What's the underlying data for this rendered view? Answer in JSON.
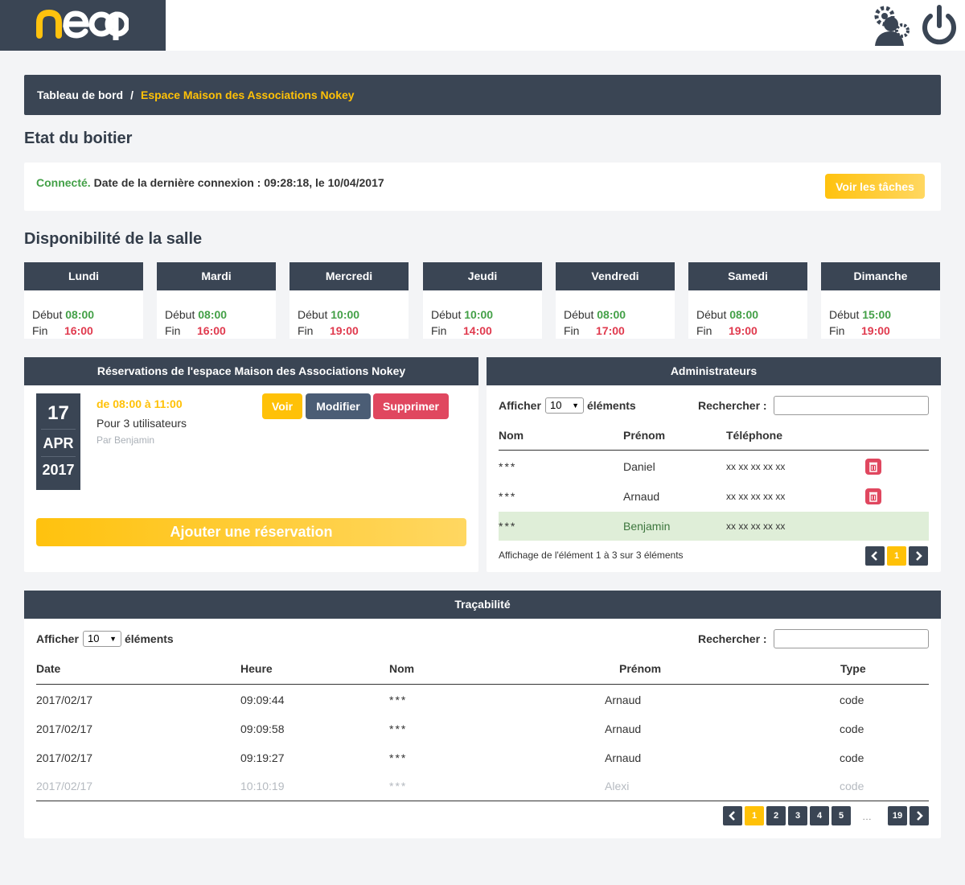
{
  "logo_text": "neop",
  "icons": {
    "user_settings": "user-gear-icon",
    "power": "power-icon",
    "trash": "trash-icon",
    "prev": "chevron-left-icon",
    "next": "chevron-right-icon"
  },
  "colors": {
    "brand_dark": "#3a4554",
    "accent": "#ffc107",
    "success": "#43a047",
    "danger": "#e03a4e"
  },
  "breadcrumb": {
    "home": "Tableau de bord",
    "separator": "/",
    "current": "Espace Maison des Associations Nokey"
  },
  "status": {
    "title": "Etat du boitier",
    "state": "Connecté.",
    "detail": "Date de la dernière connexion : 09:28:18, le 10/04/2017",
    "button": "Voir les tâches"
  },
  "availability": {
    "title": "Disponibilité de la salle",
    "start_label": "Début",
    "end_label": "Fin",
    "days": [
      {
        "name": "Lundi",
        "start": "08:00",
        "end": "16:00"
      },
      {
        "name": "Mardi",
        "start": "08:00",
        "end": "16:00"
      },
      {
        "name": "Mercredi",
        "start": "10:00",
        "end": "19:00"
      },
      {
        "name": "Jeudi",
        "start": "10:00",
        "end": "14:00"
      },
      {
        "name": "Vendredi",
        "start": "08:00",
        "end": "17:00"
      },
      {
        "name": "Samedi",
        "start": "08:00",
        "end": "19:00"
      },
      {
        "name": "Dimanche",
        "start": "15:00",
        "end": "19:00"
      }
    ]
  },
  "reservations": {
    "title": "Réservations de l'espace Maison des Associations Nokey",
    "item": {
      "day": "17",
      "month": "APR",
      "year": "2017",
      "time": "de 08:00 à 11:00",
      "users": "Pour 3 utilisateurs",
      "by": "Par Benjamin"
    },
    "btn_view": "Voir",
    "btn_edit": "Modifier",
    "btn_delete": "Supprimer",
    "btn_add": "Ajouter une réservation"
  },
  "admins": {
    "title": "Administrateurs",
    "show_label": "Afficher",
    "show_value": "10",
    "elements_label": "éléments",
    "search_label": "Rechercher :",
    "columns": [
      "Nom",
      "Prénom",
      "Téléphone"
    ],
    "rows": [
      {
        "nom": "***",
        "prenom": "Daniel",
        "tel": "xx xx xx xx xx"
      },
      {
        "nom": "***",
        "prenom": "Arnaud",
        "tel": "xx xx xx xx xx"
      },
      {
        "nom": "***",
        "prenom": "Benjamin",
        "tel": "xx xx xx xx xx"
      }
    ],
    "info": "Affichage de l'élément 1 à 3 sur 3 éléments",
    "page": "1"
  },
  "trace": {
    "title": "Traçabilité",
    "show_label": "Afficher",
    "show_value": "10",
    "elements_label": "éléments",
    "search_label": "Rechercher :",
    "columns": [
      "Date",
      "Heure",
      "Nom",
      "Prénom",
      "Type"
    ],
    "rows": [
      {
        "date": "2017/02/17",
        "heure": "09:09:44",
        "nom": "***",
        "prenom": "Arnaud",
        "type": "code"
      },
      {
        "date": "2017/02/17",
        "heure": "09:09:58",
        "nom": "***",
        "prenom": "Arnaud",
        "type": "code"
      },
      {
        "date": "2017/02/17",
        "heure": "09:19:27",
        "nom": "***",
        "prenom": "Arnaud",
        "type": "code"
      },
      {
        "date": "2017/02/17",
        "heure": "10:10:19",
        "nom": "***",
        "prenom": "Alexi",
        "type": "code"
      }
    ],
    "pages": [
      "1",
      "2",
      "3",
      "4",
      "5"
    ],
    "dots": "…",
    "last_page": "19"
  }
}
